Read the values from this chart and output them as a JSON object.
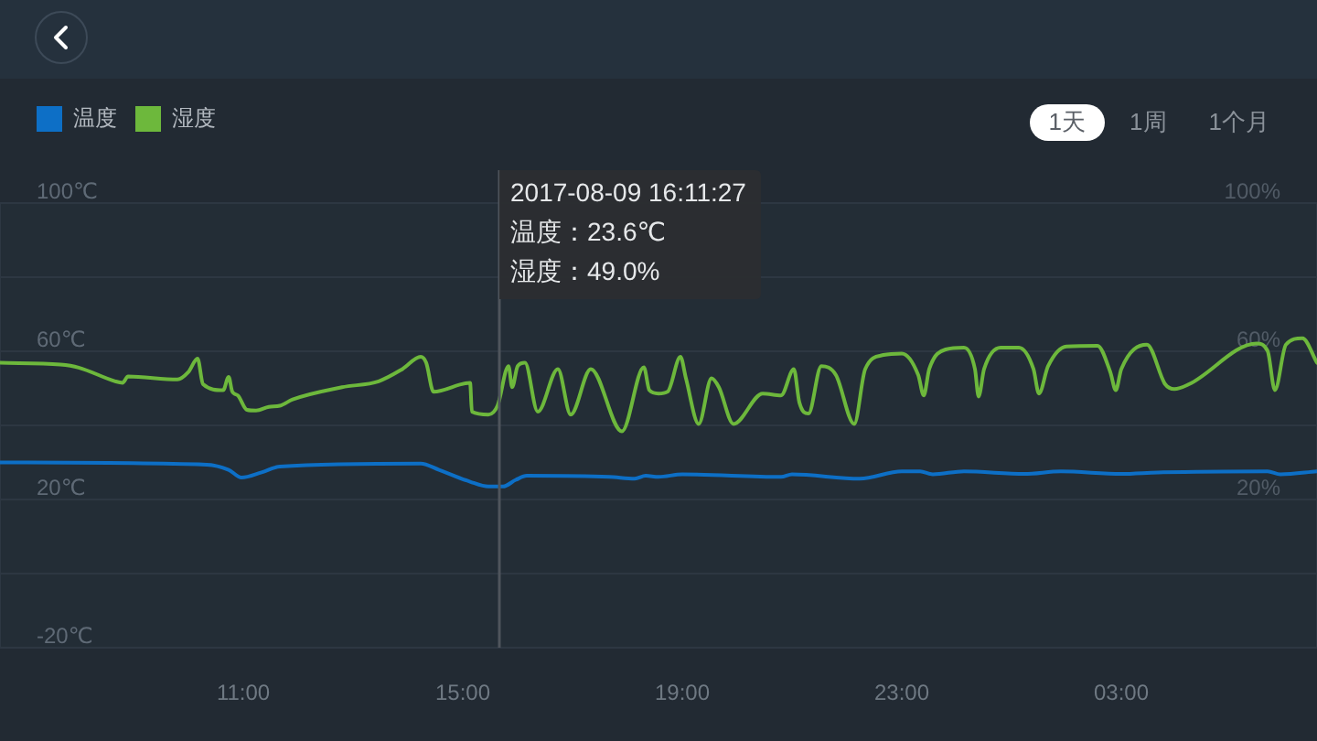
{
  "chart_data": {
    "type": "line",
    "xlim": [
      "2017-08-09T06:34",
      "2017-08-10T06:34"
    ],
    "xticks": [
      {
        "value": "2017-08-09T11:00",
        "label": "11:00"
      },
      {
        "value": "2017-08-09T15:00",
        "label": "15:00"
      },
      {
        "value": "2017-08-09T19:00",
        "label": "19:00"
      },
      {
        "value": "2017-08-09T23:00",
        "label": "23:00"
      },
      {
        "value": "2017-08-10T03:00",
        "label": "03:00"
      }
    ],
    "ylim": [
      -20,
      100
    ],
    "yticks": [
      {
        "value": -20,
        "label": "-20℃"
      },
      {
        "value": 0,
        "label": null
      },
      {
        "value": 20,
        "label": "20℃"
      },
      {
        "value": 40,
        "label": null
      },
      {
        "value": 60,
        "label": "60℃"
      },
      {
        "value": 80,
        "label": null
      },
      {
        "value": 100,
        "label": "100℃"
      }
    ],
    "y2lim": [
      -20,
      100
    ],
    "y2ticks": [
      {
        "value": -20,
        "label": null
      },
      {
        "value": 0,
        "label": null
      },
      {
        "value": 20,
        "label": "20%"
      },
      {
        "value": 40,
        "label": null
      },
      {
        "value": 60,
        "label": "60%"
      },
      {
        "value": 80,
        "label": null
      },
      {
        "value": 100,
        "label": "100%"
      }
    ],
    "grid": "y",
    "legend": "top left",
    "series": [
      {
        "name": "温度",
        "color": "#0d6fc6",
        "x": [
          "2017-08-09T06:34",
          "2017-08-09T10:20",
          "2017-08-09T10:44",
          "2017-08-09T10:58",
          "2017-08-09T11:20",
          "2017-08-09T11:40",
          "2017-08-09T14:14",
          "2017-08-09T14:34",
          "2017-08-09T15:08",
          "2017-08-09T15:28",
          "2017-08-09T15:44",
          "2017-08-09T15:58",
          "2017-08-09T16:10",
          "2017-08-09T17:40",
          "2017-08-09T18:08",
          "2017-08-09T18:20",
          "2017-08-09T18:34",
          "2017-08-09T19:00",
          "2017-08-09T20:48",
          "2017-08-09T21:00",
          "2017-08-09T22:14",
          "2017-08-09T23:00",
          "2017-08-09T23:20",
          "2017-08-09T23:34",
          "2017-08-10T00:08",
          "2017-08-10T01:14",
          "2017-08-10T01:54",
          "2017-08-10T03:00",
          "2017-08-10T03:40",
          "2017-08-10T05:40",
          "2017-08-10T05:54",
          "2017-08-10T06:34"
        ],
        "values": [
          30.0,
          29.4,
          28.0,
          25.9,
          27.3,
          28.9,
          29.7,
          28.0,
          24.8,
          23.5,
          23.5,
          25.3,
          26.4,
          26.1,
          25.6,
          26.4,
          26.1,
          26.8,
          26.1,
          26.8,
          25.6,
          27.6,
          27.6,
          26.8,
          27.6,
          26.9,
          27.6,
          26.9,
          27.3,
          27.6,
          26.8,
          27.6
        ]
      },
      {
        "name": "湿度",
        "color": "#6db83c",
        "axis": "y2",
        "x": [
          "2017-08-09T06:34",
          "2017-08-09T07:40",
          "2017-08-09T08:00",
          "2017-08-09T08:40",
          "2017-08-09T08:48",
          "2017-08-09T08:54",
          "2017-08-09T09:48",
          "2017-08-09T10:00",
          "2017-08-09T10:10",
          "2017-08-09T10:16",
          "2017-08-09T10:38",
          "2017-08-09T10:44",
          "2017-08-09T10:48",
          "2017-08-09T10:54",
          "2017-08-09T11:04",
          "2017-08-09T11:14",
          "2017-08-09T11:28",
          "2017-08-09T11:40",
          "2017-08-09T11:54",
          "2017-08-09T12:48",
          "2017-08-09T13:28",
          "2017-08-09T13:54",
          "2017-08-09T14:14",
          "2017-08-09T14:20",
          "2017-08-09T14:28",
          "2017-08-09T15:08",
          "2017-08-09T15:10",
          "2017-08-09T15:28",
          "2017-08-09T15:38",
          "2017-08-09T15:50",
          "2017-08-09T15:54",
          "2017-08-09T16:00",
          "2017-08-09T16:08",
          "2017-08-09T16:22",
          "2017-08-09T16:44",
          "2017-08-09T16:58",
          "2017-08-09T17:20",
          "2017-08-09T17:54",
          "2017-08-09T18:18",
          "2017-08-09T18:24",
          "2017-08-09T18:34",
          "2017-08-09T18:44",
          "2017-08-09T18:58",
          "2017-08-09T19:04",
          "2017-08-09T19:18",
          "2017-08-09T19:32",
          "2017-08-09T19:40",
          "2017-08-09T19:56",
          "2017-08-09T20:28",
          "2017-08-09T20:48",
          "2017-08-09T21:02",
          "2017-08-09T21:08",
          "2017-08-09T21:18",
          "2017-08-09T21:32",
          "2017-08-09T21:48",
          "2017-08-09T22:08",
          "2017-08-09T22:20",
          "2017-08-09T22:40",
          "2017-08-09T23:00",
          "2017-08-09T23:18",
          "2017-08-09T23:24",
          "2017-08-09T23:30",
          "2017-08-09T23:48",
          "2017-08-10T00:08",
          "2017-08-10T00:20",
          "2017-08-10T00:24",
          "2017-08-10T00:30",
          "2017-08-10T00:48",
          "2017-08-10T01:08",
          "2017-08-10T01:24",
          "2017-08-10T01:30",
          "2017-08-10T01:40",
          "2017-08-10T02:00",
          "2017-08-10T02:34",
          "2017-08-10T02:48",
          "2017-08-10T02:54",
          "2017-08-10T03:00",
          "2017-08-10T03:28",
          "2017-08-10T03:48",
          "2017-08-10T03:58",
          "2017-08-10T04:14",
          "2017-08-10T05:28",
          "2017-08-10T05:40",
          "2017-08-10T05:48",
          "2017-08-10T06:00",
          "2017-08-10T06:18",
          "2017-08-10T06:34"
        ],
        "values": [
          56.9,
          56.4,
          55.6,
          51.9,
          51.5,
          53.2,
          52.4,
          54.4,
          58.0,
          51.1,
          49.5,
          53.1,
          49.1,
          48.1,
          44.2,
          44.0,
          45.0,
          45.3,
          47.0,
          50.3,
          51.9,
          55.2,
          58.5,
          56.9,
          49.1,
          51.5,
          43.7,
          42.9,
          45.3,
          56.0,
          50.3,
          56.0,
          56.9,
          43.7,
          55.2,
          42.9,
          55.2,
          38.4,
          55.7,
          49.5,
          48.6,
          49.1,
          58.5,
          52.7,
          40.4,
          52.7,
          50.3,
          40.4,
          48.6,
          48.1,
          55.2,
          46.2,
          43.2,
          56.0,
          53.6,
          40.4,
          55.2,
          59.0,
          59.4,
          53.6,
          48.1,
          55.2,
          60.5,
          61.0,
          55.2,
          47.8,
          55.2,
          61.0,
          61.0,
          55.2,
          48.6,
          56.0,
          61.3,
          61.5,
          54.4,
          49.5,
          55.2,
          61.8,
          51.1,
          49.8,
          51.1,
          62.1,
          60.1,
          49.5,
          61.8,
          63.5,
          56.9
        ]
      }
    ],
    "ref_lines": [
      {
        "axis": "x",
        "value": "2017-08-09T15:40"
      }
    ],
    "annotations": [
      "2017-08-09 16:11:27",
      "温度：23.6℃",
      "湿度：49.0%",
      "1天",
      "1周",
      "1个月"
    ]
  }
}
